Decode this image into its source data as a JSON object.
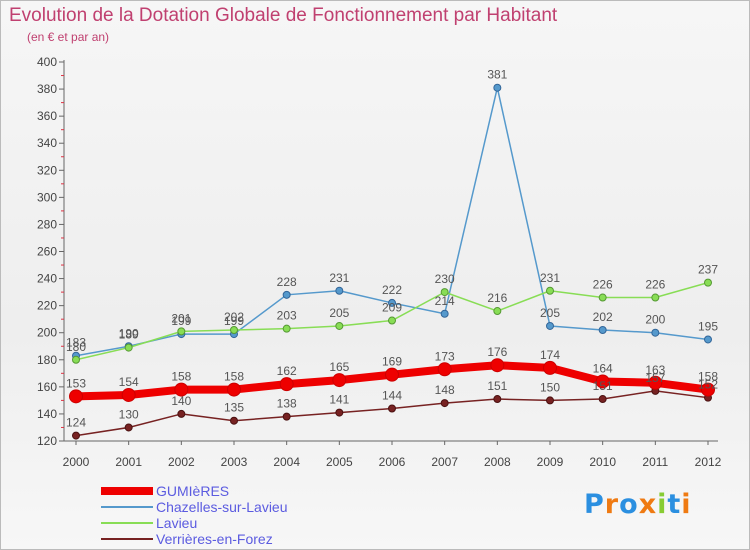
{
  "chart_data": {
    "type": "line",
    "title": "Evolution de la Dotation Globale de Fonctionnement par Habitant",
    "subtitle": "(en € et par an)",
    "x": [
      "2000",
      "2001",
      "2002",
      "2003",
      "2004",
      "2005",
      "2006",
      "2007",
      "2008",
      "2009",
      "2010",
      "2011",
      "2012"
    ],
    "ylim": [
      120,
      400
    ],
    "yticks": [
      120,
      140,
      160,
      180,
      200,
      220,
      240,
      260,
      280,
      300,
      320,
      340,
      360,
      380,
      400
    ],
    "grid": false,
    "legend_position": "bottom-left",
    "series": [
      {
        "name": "GUMIèRES",
        "color": "#ee0000",
        "values": [
          153,
          154,
          158,
          158,
          162,
          165,
          169,
          173,
          176,
          174,
          164,
          163,
          158
        ]
      },
      {
        "name": "Chazelles-sur-Lavieu",
        "color": "#5599cc",
        "values": [
          183,
          190,
          199,
          199,
          228,
          231,
          222,
          214,
          381,
          205,
          202,
          200,
          195
        ]
      },
      {
        "name": "Lavieu",
        "color": "#88dd55",
        "values": [
          180,
          189,
          201,
          202,
          203,
          205,
          209,
          230,
          216,
          231,
          226,
          226,
          237
        ]
      },
      {
        "name": "Verrières-en-Forez",
        "color": "#772222",
        "values": [
          124,
          130,
          140,
          135,
          138,
          141,
          144,
          148,
          151,
          150,
          151,
          157,
          152
        ]
      }
    ]
  },
  "logo": {
    "letters": [
      {
        "ch": "P",
        "color": "#2b8fe0"
      },
      {
        "ch": "r",
        "color": "#ef7a12"
      },
      {
        "ch": "o",
        "color": "#2b8fe0"
      },
      {
        "ch": "x",
        "color": "#ef7a12"
      },
      {
        "ch": "i",
        "color": "#88cc33"
      },
      {
        "ch": "t",
        "color": "#2b8fe0"
      },
      {
        "ch": "i",
        "color": "#ef7a12"
      }
    ]
  }
}
